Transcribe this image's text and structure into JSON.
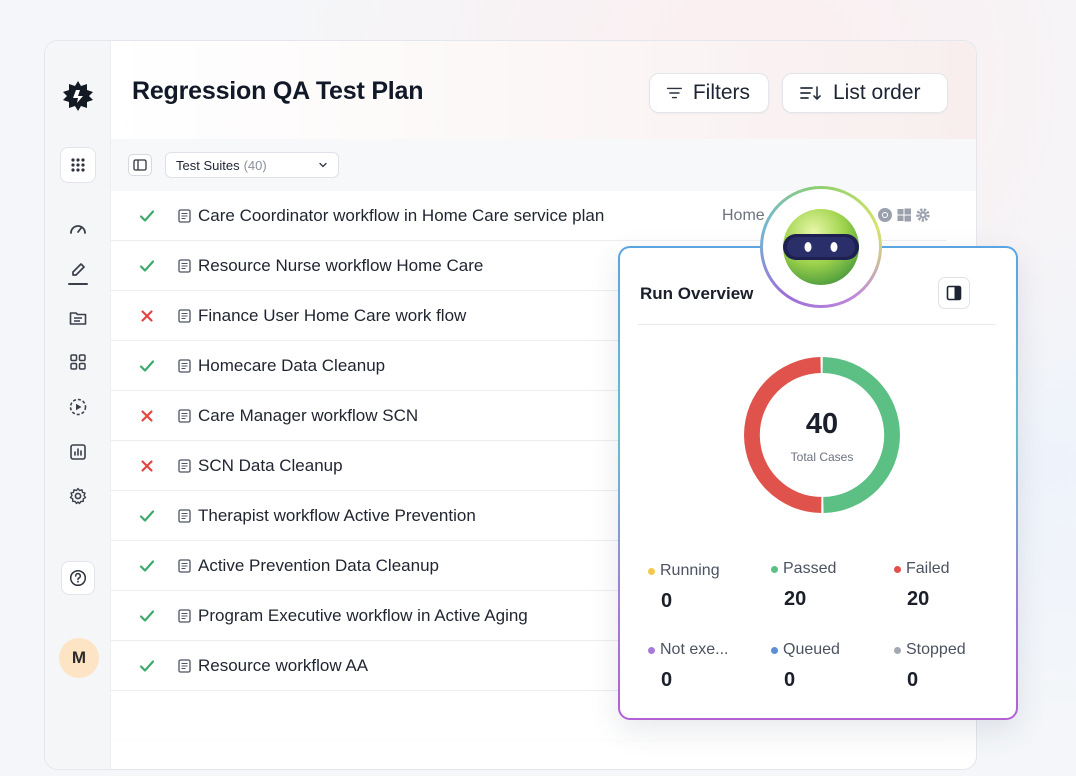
{
  "page": {
    "title": "Regression QA Test Plan"
  },
  "header": {
    "filters_label": "Filters",
    "list_order_label": "List order"
  },
  "toolbar": {
    "suite_select_label": "Test Suites",
    "suite_select_count": "(40)"
  },
  "sidebar": {
    "avatar_initial": "M",
    "items": [
      {
        "icon": "gauge-icon"
      },
      {
        "icon": "edit-icon",
        "active": true
      },
      {
        "icon": "folder-icon"
      },
      {
        "icon": "grid-icon"
      },
      {
        "icon": "play-circle-icon"
      },
      {
        "icon": "chart-icon"
      },
      {
        "icon": "settings-icon"
      }
    ]
  },
  "test_cases": [
    {
      "title": "Care Coordinator workflow in Home Care service plan",
      "status": "passed",
      "tag": "Home"
    },
    {
      "title": "Resource Nurse workflow Home Care",
      "status": "passed"
    },
    {
      "title": "Finance User Home Care work flow",
      "status": "failed"
    },
    {
      "title": "Homecare Data Cleanup",
      "status": "passed"
    },
    {
      "title": "Care Manager workflow SCN",
      "status": "failed"
    },
    {
      "title": "SCN Data Cleanup",
      "status": "failed"
    },
    {
      "title": "Therapist workflow Active Prevention",
      "status": "passed"
    },
    {
      "title": "Active Prevention Data Cleanup",
      "status": "passed"
    },
    {
      "title": "Program Executive workflow in Active Aging",
      "status": "passed"
    },
    {
      "title": "Resource workflow AA",
      "status": "passed"
    }
  ],
  "run_overview": {
    "title": "Run Overview",
    "total": "40",
    "total_label": "Total Cases",
    "stats": [
      {
        "label": "Running",
        "value": "0",
        "color": "#f2c94c"
      },
      {
        "label": "Passed",
        "value": "20",
        "color": "#5cbf84"
      },
      {
        "label": "Failed",
        "value": "20",
        "color": "#e0524c"
      },
      {
        "label": "Not exe...",
        "value": "0",
        "color": "#a77ad8"
      },
      {
        "label": "Queued",
        "value": "0",
        "color": "#5b8fd1"
      },
      {
        "label": "Stopped",
        "value": "0",
        "color": "#a3a8b3"
      }
    ],
    "chart_data": {
      "type": "pie",
      "categories": [
        "Passed",
        "Failed"
      ],
      "values": [
        20,
        20
      ],
      "colors": [
        "#5cbf84",
        "#e0524c"
      ]
    }
  },
  "colors": {
    "pass": "#3daa6b",
    "fail": "#e0463f",
    "accent_blue": "#5aa4e2",
    "accent_purple": "#b35fd6"
  }
}
